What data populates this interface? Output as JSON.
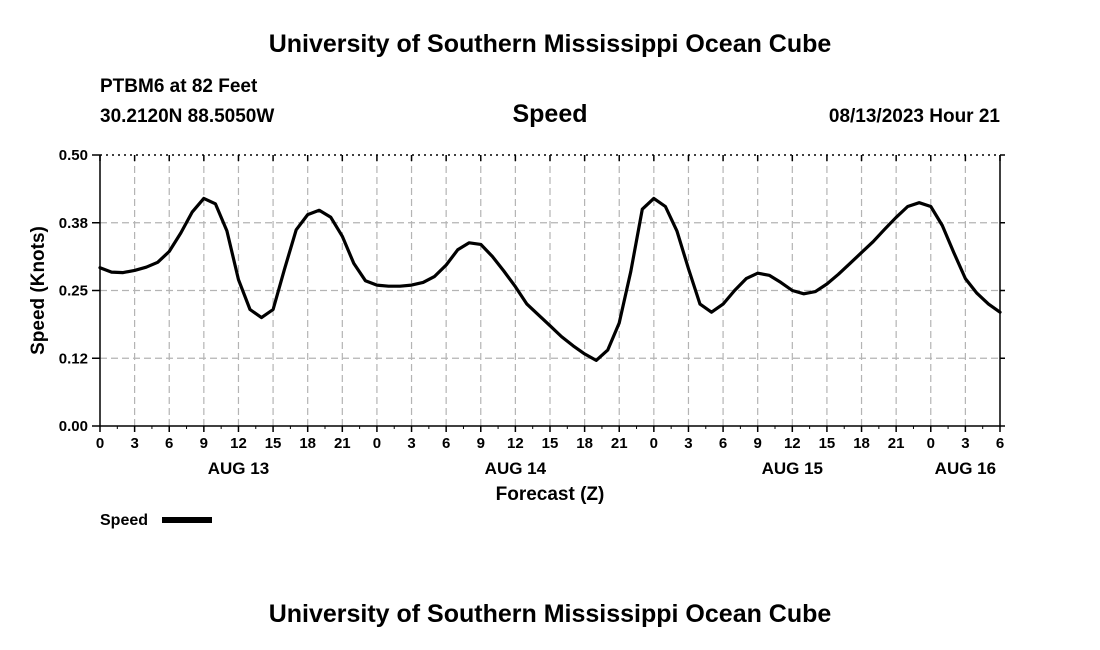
{
  "header": {
    "title": "University of Southern Mississippi Ocean Cube",
    "station": "PTBM6 at 82 Feet",
    "coordinates": "30.2120N  88.5050W",
    "chart_heading": "Speed",
    "timestamp": "08/13/2023 Hour 21"
  },
  "footer": {
    "title": "University of Southern Mississippi Ocean Cube"
  },
  "chart_data": {
    "type": "line",
    "title": "Speed",
    "xlabel": "Forecast (Z)",
    "ylabel": "Speed (Knots)",
    "xlim": [
      0,
      78
    ],
    "ylim": [
      0,
      0.5
    ],
    "yticks": [
      0.0,
      0.125,
      0.25,
      0.375,
      0.5
    ],
    "ytick_labels": [
      "0.00",
      "0.12",
      "0.25",
      "0.38",
      "0.50"
    ],
    "xticks": [
      0,
      3,
      6,
      9,
      12,
      15,
      18,
      21,
      24,
      27,
      30,
      33,
      36,
      39,
      42,
      45,
      48,
      51,
      54,
      57,
      60,
      63,
      66,
      69,
      72,
      75,
      78
    ],
    "xtick_labels": [
      "0",
      "3",
      "6",
      "9",
      "12",
      "15",
      "18",
      "21",
      "0",
      "3",
      "6",
      "9",
      "12",
      "15",
      "18",
      "21",
      "0",
      "3",
      "6",
      "9",
      "12",
      "15",
      "18",
      "21",
      "0",
      "3",
      "6"
    ],
    "date_labels": [
      {
        "x": 12,
        "label": "AUG 13"
      },
      {
        "x": 36,
        "label": "AUG 14"
      },
      {
        "x": 60,
        "label": "AUG 15"
      },
      {
        "x": 75,
        "label": "AUG 16"
      }
    ],
    "grid": true,
    "legend": {
      "label": "Speed",
      "placement": "bottom-left"
    },
    "series": [
      {
        "name": "Speed",
        "color": "#000000",
        "x": [
          0,
          1,
          2,
          3,
          4,
          5,
          6,
          7,
          8,
          9,
          10,
          11,
          12,
          13,
          14,
          15,
          16,
          17,
          18,
          19,
          20,
          21,
          22,
          23,
          24,
          25,
          26,
          27,
          28,
          29,
          30,
          31,
          32,
          33,
          34,
          35,
          36,
          37,
          38,
          39,
          40,
          41,
          42,
          43,
          44,
          45,
          46,
          47,
          48,
          49,
          50,
          51,
          52,
          53,
          54,
          55,
          56,
          57,
          58,
          59,
          60,
          61,
          62,
          63,
          64,
          65,
          66,
          67,
          68,
          69,
          70,
          71,
          72,
          73,
          74,
          75,
          76,
          77,
          78
        ],
        "values": [
          0.292,
          0.284,
          0.283,
          0.287,
          0.293,
          0.302,
          0.322,
          0.356,
          0.395,
          0.42,
          0.41,
          0.36,
          0.27,
          0.215,
          0.2,
          0.215,
          0.29,
          0.362,
          0.39,
          0.398,
          0.385,
          0.35,
          0.3,
          0.268,
          0.26,
          0.258,
          0.258,
          0.26,
          0.265,
          0.276,
          0.297,
          0.325,
          0.338,
          0.335,
          0.313,
          0.286,
          0.257,
          0.225,
          0.205,
          0.185,
          0.165,
          0.148,
          0.133,
          0.121,
          0.14,
          0.19,
          0.285,
          0.4,
          0.42,
          0.405,
          0.36,
          0.29,
          0.225,
          0.21,
          0.225,
          0.25,
          0.272,
          0.282,
          0.278,
          0.265,
          0.25,
          0.244,
          0.248,
          0.262,
          0.28,
          0.3,
          0.32,
          0.34,
          0.363,
          0.385,
          0.405,
          0.412,
          0.405,
          0.37,
          0.32,
          0.272,
          0.245,
          0.225,
          0.21
        ]
      }
    ]
  }
}
